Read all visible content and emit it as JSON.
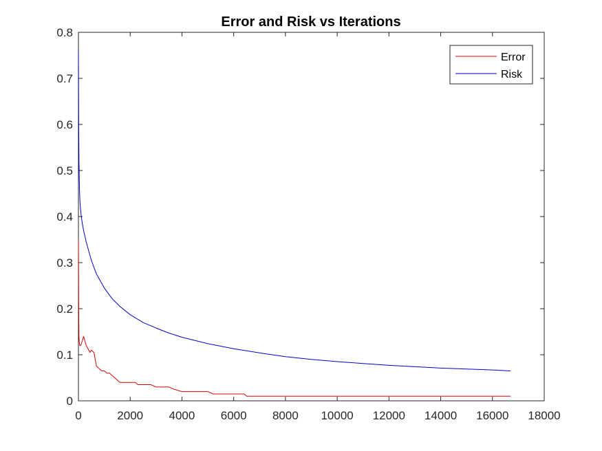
{
  "chart_data": {
    "type": "line",
    "title": "Error and Risk vs Iterations",
    "xlabel": "",
    "ylabel": "",
    "xlim": [
      0,
      18000
    ],
    "ylim": [
      0,
      0.8
    ],
    "xticks": [
      0,
      2000,
      4000,
      6000,
      8000,
      10000,
      12000,
      14000,
      16000,
      18000
    ],
    "yticks": [
      0,
      0.1,
      0.2,
      0.3,
      0.4,
      0.5,
      0.6,
      0.7,
      0.8
    ],
    "xtick_labels": [
      "0",
      "2000",
      "4000",
      "6000",
      "8000",
      "10000",
      "12000",
      "14000",
      "16000",
      "18000"
    ],
    "ytick_labels": [
      "0",
      "0.1",
      "0.2",
      "0.3",
      "0.4",
      "0.5",
      "0.6",
      "0.7",
      "0.8"
    ],
    "grid": false,
    "legend_position": "top-right",
    "series": [
      {
        "name": "Error",
        "color": "#d40000",
        "x": [
          0,
          10,
          20,
          30,
          50,
          80,
          120,
          150,
          200,
          250,
          300,
          350,
          400,
          450,
          500,
          600,
          650,
          700,
          800,
          900,
          1000,
          1100,
          1200,
          1300,
          1400,
          1500,
          1600,
          1800,
          2000,
          2200,
          2300,
          2500,
          2800,
          3000,
          3200,
          3500,
          3700,
          4000,
          4500,
          5000,
          5200,
          5500,
          6000,
          6400,
          6500,
          7000,
          8000,
          10000,
          12000,
          14000,
          16000,
          16700
        ],
        "y": [
          0.35,
          0.2,
          0.14,
          0.13,
          0.12,
          0.12,
          0.125,
          0.13,
          0.14,
          0.13,
          0.12,
          0.115,
          0.11,
          0.105,
          0.11,
          0.105,
          0.09,
          0.075,
          0.07,
          0.065,
          0.065,
          0.06,
          0.06,
          0.055,
          0.05,
          0.045,
          0.04,
          0.04,
          0.04,
          0.04,
          0.035,
          0.035,
          0.035,
          0.03,
          0.03,
          0.03,
          0.025,
          0.02,
          0.02,
          0.02,
          0.015,
          0.015,
          0.015,
          0.015,
          0.01,
          0.01,
          0.01,
          0.01,
          0.01,
          0.01,
          0.01,
          0.01
        ]
      },
      {
        "name": "Risk",
        "color": "#0000c8",
        "x": [
          0,
          10,
          20,
          40,
          60,
          100,
          150,
          200,
          300,
          400,
          500,
          700,
          1000,
          1300,
          1600,
          2000,
          2500,
          3000,
          3500,
          4000,
          5000,
          6000,
          7000,
          8000,
          9000,
          10000,
          11000,
          12000,
          13000,
          14000,
          15000,
          16000,
          16700
        ],
        "y": [
          0.76,
          0.6,
          0.52,
          0.46,
          0.43,
          0.405,
          0.385,
          0.37,
          0.345,
          0.325,
          0.305,
          0.275,
          0.245,
          0.222,
          0.205,
          0.187,
          0.17,
          0.158,
          0.147,
          0.138,
          0.124,
          0.113,
          0.104,
          0.096,
          0.09,
          0.085,
          0.081,
          0.077,
          0.074,
          0.071,
          0.069,
          0.067,
          0.065
        ]
      }
    ]
  }
}
